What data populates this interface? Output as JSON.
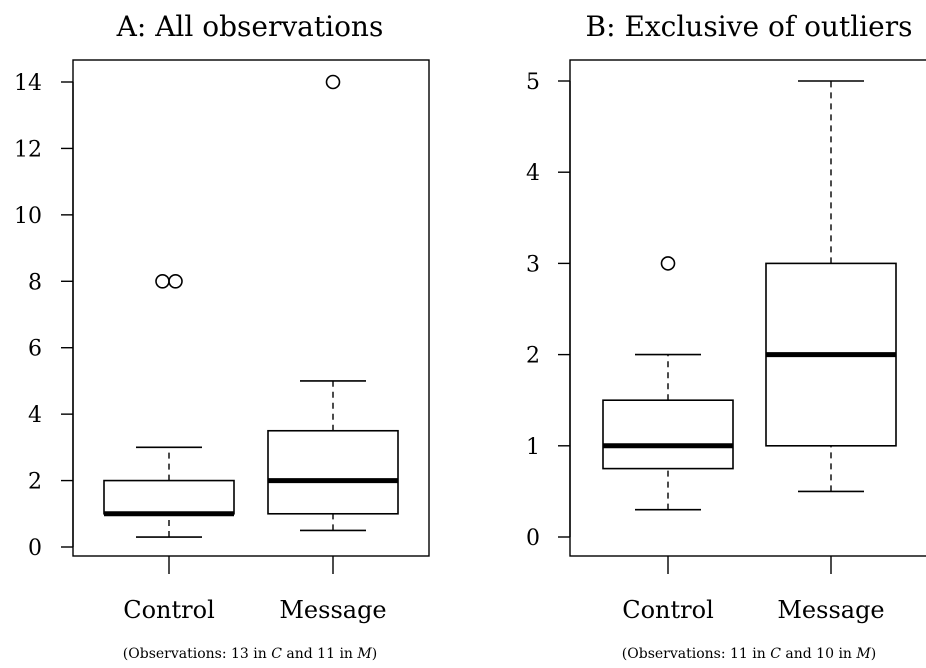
{
  "chart_data": [
    {
      "type": "box",
      "title": "A: All observations",
      "xlabel": "",
      "ylabel": "",
      "ylim": [
        0,
        14
      ],
      "yticks": [
        0,
        2,
        4,
        6,
        8,
        10,
        12,
        14
      ],
      "categories": [
        "Control",
        "Message"
      ],
      "boxes": [
        {
          "category": "Control",
          "whisker_low": 0.3,
          "q1": 1,
          "median": 1,
          "q3": 2,
          "whisker_high": 3,
          "outliers": [
            8,
            8
          ]
        },
        {
          "category": "Message",
          "whisker_low": 0.5,
          "q1": 1,
          "median": 2,
          "q3": 3.5,
          "whisker_high": 5,
          "outliers": [
            14
          ]
        }
      ],
      "note": {
        "prefix": "(Observations: 13 in ",
        "c": "C",
        "mid": " and 11 in ",
        "m": "M",
        "suffix": ")"
      }
    },
    {
      "type": "box",
      "title": "B: Exclusive of outliers",
      "xlabel": "",
      "ylabel": "",
      "ylim": [
        0,
        5
      ],
      "yticks": [
        0,
        1,
        2,
        3,
        4,
        5
      ],
      "categories": [
        "Control",
        "Message"
      ],
      "boxes": [
        {
          "category": "Control",
          "whisker_low": 0.3,
          "q1": 0.75,
          "median": 1,
          "q3": 1.5,
          "whisker_high": 2,
          "outliers": [
            3
          ]
        },
        {
          "category": "Message",
          "whisker_low": 0.5,
          "q1": 1,
          "median": 2,
          "q3": 3,
          "whisker_high": 5,
          "outliers": []
        }
      ],
      "note": {
        "prefix": "(Observations: 11 in ",
        "c": "C",
        "mid": " and 10 in ",
        "m": "M",
        "suffix": ")"
      }
    }
  ]
}
